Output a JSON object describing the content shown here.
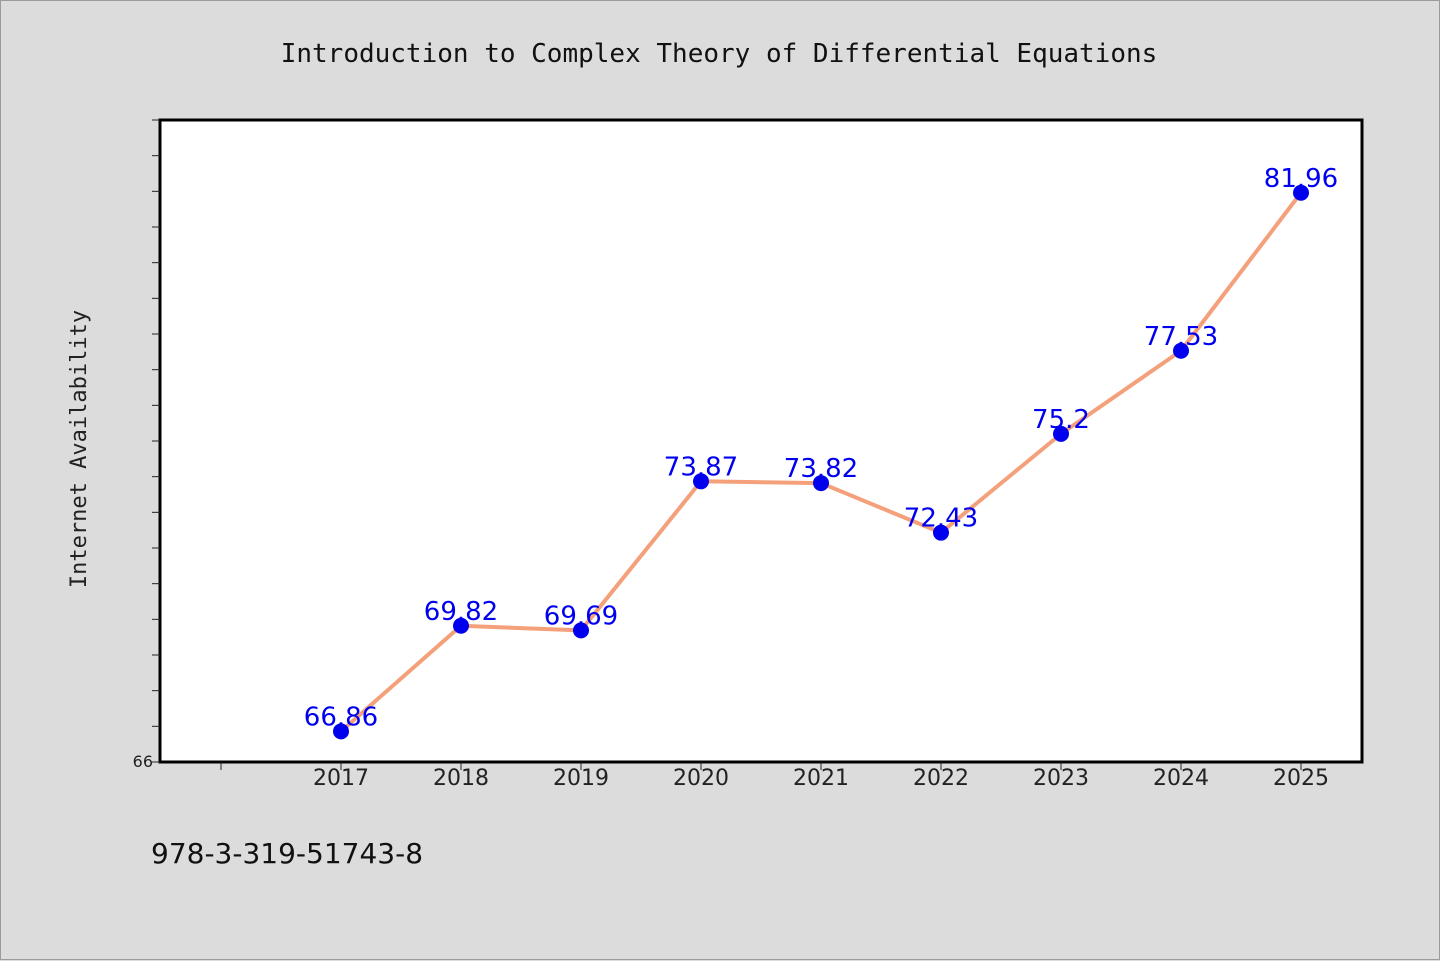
{
  "chart_data": {
    "type": "line",
    "title": "Introduction to Complex Theory of Differential Equations",
    "xlabel": "",
    "ylabel": "Internet Availability",
    "categories": [
      "2017",
      "2018",
      "2019",
      "2020",
      "2021",
      "2022",
      "2023",
      "2024",
      "2025"
    ],
    "series": [
      {
        "values": [
          66.86,
          69.82,
          69.69,
          73.87,
          73.82,
          72.43,
          75.2,
          77.53,
          81.96
        ],
        "labels": [
          "66.86",
          "69.82",
          "69.69",
          "73.87",
          "73.82",
          "72.43",
          "75.2",
          "77.53",
          "81.96"
        ]
      }
    ],
    "ylim": [
      66,
      84
    ],
    "y_tick_labels": [
      "66"
    ],
    "grid": false,
    "colors": {
      "line": "#f4a07a",
      "marker": "#0000ee",
      "data_label": "#0000ee"
    }
  },
  "footer": {
    "isbn": "978-3-319-51743-8"
  }
}
